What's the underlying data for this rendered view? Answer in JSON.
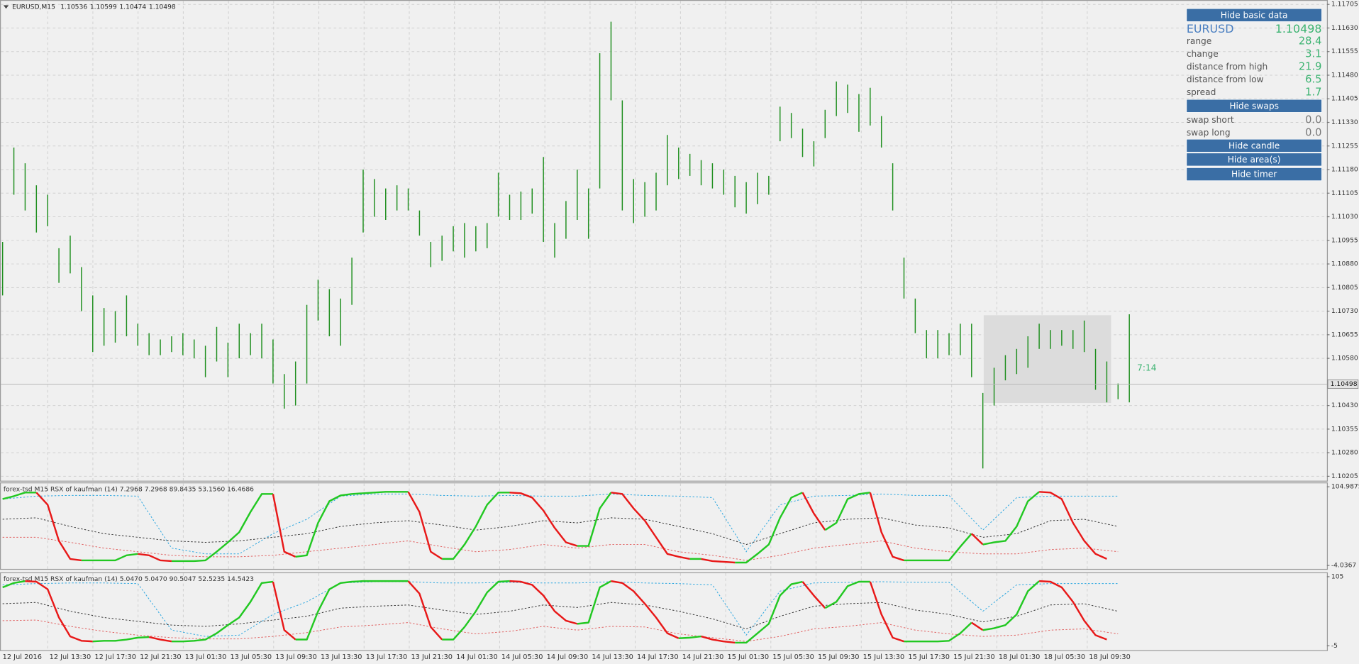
{
  "header": {
    "symbol": "EURUSD,M15",
    "open": 1.10536,
    "high": 1.10599,
    "low": 1.10474,
    "close": 1.10498
  },
  "chart_data": [
    {
      "type": "ohlc",
      "color": "#1f8f1f",
      "high": [
        1.1095,
        1.1125,
        1.112,
        1.1113,
        1.111,
        1.1093,
        1.1097,
        1.1087,
        1.1078,
        1.1074,
        1.1073,
        1.1078,
        1.1069,
        1.1066,
        1.1064,
        1.1065,
        1.1066,
        1.1064,
        1.1062,
        1.1068,
        1.1063,
        1.1069,
        1.1066,
        1.1069,
        1.1064,
        1.1053,
        1.1057,
        1.1075,
        1.1083,
        1.108,
        1.1077,
        1.109,
        1.1118,
        1.1115,
        1.1112,
        1.1113,
        1.1112,
        1.1105,
        1.1095,
        1.1097,
        1.11,
        1.1101,
        1.11,
        1.1101,
        1.1117,
        1.111,
        1.1111,
        1.1112,
        1.1122,
        1.1101,
        1.1108,
        1.1118,
        1.1112,
        1.1155,
        1.1165,
        1.114,
        1.1115,
        1.1114,
        1.1117,
        1.1129,
        1.1125,
        1.1123,
        1.1121,
        1.112,
        1.1118,
        1.1116,
        1.1114,
        1.1117,
        1.1116,
        1.1138,
        1.1136,
        1.1131,
        1.1127,
        1.1137,
        1.1146,
        1.1145,
        1.1142,
        1.1144,
        1.1135,
        1.112,
        1.109,
        1.1077,
        1.1067,
        1.1067,
        1.1066,
        1.1069,
        1.1069,
        1.1047,
        1.1055,
        1.1059,
        1.1061,
        1.1065,
        1.1069,
        1.1067,
        1.1067,
        1.1067,
        1.107,
        1.1061,
        1.1057,
        1.105,
        1.1072
      ],
      "low": [
        1.1078,
        1.111,
        1.1105,
        1.1098,
        1.11,
        1.1082,
        1.1085,
        1.1073,
        1.106,
        1.1062,
        1.1063,
        1.1065,
        1.1062,
        1.1059,
        1.1059,
        1.106,
        1.1059,
        1.1058,
        1.1052,
        1.1057,
        1.1052,
        1.1058,
        1.1059,
        1.1058,
        1.105,
        1.1042,
        1.1043,
        1.105,
        1.107,
        1.1065,
        1.1062,
        1.1075,
        1.1098,
        1.1103,
        1.1102,
        1.1105,
        1.1105,
        1.1097,
        1.1087,
        1.1089,
        1.1092,
        1.109,
        1.1092,
        1.1093,
        1.1103,
        1.1102,
        1.1102,
        1.1104,
        1.1095,
        1.109,
        1.1096,
        1.1102,
        1.1096,
        1.1112,
        1.114,
        1.1105,
        1.1101,
        1.1103,
        1.1105,
        1.1113,
        1.1115,
        1.1116,
        1.1113,
        1.1112,
        1.111,
        1.1106,
        1.1104,
        1.1107,
        1.111,
        1.1127,
        1.1128,
        1.1122,
        1.1119,
        1.1128,
        1.1135,
        1.1136,
        1.113,
        1.1132,
        1.1125,
        1.1105,
        1.1077,
        1.1066,
        1.1058,
        1.1058,
        1.1059,
        1.1059,
        1.1052,
        1.1023,
        1.1043,
        1.1051,
        1.1053,
        1.1055,
        1.1061,
        1.1061,
        1.1062,
        1.1061,
        1.106,
        1.1048,
        1.1044,
        1.1045,
        1.1044
      ],
      "ylim": [
        1.10191,
        1.11719
      ],
      "yticks": [
        1.11705,
        {
          "value": 1.1163,
          "label": "1.11630"
        },
        1.11555,
        {
          "value": 1.1148,
          "label": "1.11480"
        },
        1.11405,
        {
          "value": 1.1133,
          "label": "1.11330"
        },
        1.11255,
        {
          "value": 1.1118,
          "label": "1.11180"
        },
        1.11105,
        {
          "value": 1.1103,
          "label": "1.11030"
        },
        1.10955,
        {
          "value": 1.1088,
          "label": "1.10880"
        },
        1.10805,
        {
          "value": 1.1073,
          "label": "1.10730"
        },
        1.10655,
        {
          "value": 1.1058,
          "label": "1.10580"
        },
        {
          "value": 1.1043,
          "label": "1.10430"
        },
        1.10355,
        {
          "value": 1.1028,
          "label": "1.10280"
        },
        1.10205
      ],
      "grid": true,
      "area": {
        "high": 1.10717,
        "low": 1.10438,
        "color": "#dcdcdc"
      },
      "timer": "7:14"
    },
    {
      "type": "line",
      "title": "forex-tsd M15  RSX of kaufman (14) 7.2968 7.2968 89.8435 53.1560 16.4686",
      "up_color": "#22c822",
      "down_color": "#e81818",
      "values": [
        88,
        92,
        97,
        97,
        80,
        30,
        5,
        3,
        3,
        3,
        3,
        10,
        12,
        10,
        3,
        2,
        2,
        2,
        3,
        15,
        28,
        42,
        70,
        95,
        95,
        15,
        8,
        10,
        55,
        85,
        93,
        95,
        96,
        97,
        98,
        98,
        98,
        70,
        15,
        5,
        5,
        25,
        50,
        80,
        97,
        97,
        96,
        90,
        72,
        48,
        28,
        23,
        23,
        75,
        97,
        95,
        75,
        58,
        35,
        12,
        8,
        5,
        5,
        2,
        1,
        0,
        0,
        12,
        25,
        62,
        90,
        97,
        68,
        45,
        55,
        88,
        95,
        97,
        42,
        8,
        3,
        3,
        3,
        3,
        3,
        22,
        40,
        25,
        28,
        30,
        50,
        85,
        98,
        97,
        88,
        55,
        30,
        12,
        5
      ],
      "levels": [
        {
          "color": "#2aa6e0",
          "values": [
            88,
            92,
            93,
            93,
            92,
            20,
            12,
            12,
            40,
            60,
            92,
            95,
            95,
            93,
            92,
            93,
            92,
            92,
            95,
            93,
            92,
            90,
            15,
            80,
            92,
            93,
            95,
            93,
            93,
            45,
            90,
            92,
            92,
            92
          ]
        },
        {
          "color": "#333333",
          "values": [
            60,
            62,
            50,
            40,
            35,
            30,
            28,
            30,
            35,
            40,
            50,
            55,
            58,
            52,
            45,
            50,
            58,
            55,
            62,
            60,
            50,
            40,
            25,
            40,
            55,
            60,
            62,
            52,
            48,
            35,
            40,
            58,
            60,
            50
          ]
        },
        {
          "color": "#e06060",
          "values": [
            35,
            35,
            28,
            20,
            15,
            10,
            8,
            8,
            10,
            15,
            20,
            25,
            30,
            22,
            15,
            18,
            25,
            20,
            25,
            25,
            15,
            10,
            3,
            10,
            20,
            25,
            30,
            20,
            15,
            12,
            12,
            18,
            20,
            15
          ]
        }
      ],
      "ylim": [
        -8.8,
        111
      ],
      "yticks": [
        -4.0367,
        104.9875
      ]
    },
    {
      "type": "line",
      "title": "forex-tsd M15  RSX of kaufman (14) 5.0470 5.0470 90.5047 52.5235 14.5423",
      "up_color": "#22c822",
      "down_color": "#e81818",
      "values": [
        88,
        95,
        98,
        97,
        85,
        40,
        10,
        3,
        2,
        3,
        3,
        5,
        8,
        9,
        5,
        2,
        2,
        3,
        5,
        15,
        28,
        40,
        65,
        95,
        97,
        20,
        5,
        5,
        50,
        85,
        95,
        97,
        98,
        98,
        98,
        98,
        98,
        78,
        25,
        5,
        5,
        25,
        50,
        80,
        97,
        98,
        97,
        92,
        75,
        50,
        35,
        30,
        32,
        88,
        98,
        95,
        82,
        62,
        40,
        15,
        7,
        8,
        10,
        5,
        2,
        0,
        0,
        15,
        30,
        75,
        93,
        97,
        75,
        55,
        65,
        90,
        97,
        97,
        45,
        8,
        2,
        2,
        2,
        2,
        3,
        15,
        32,
        20,
        23,
        28,
        45,
        82,
        98,
        97,
        88,
        65,
        35,
        12,
        5
      ],
      "levels": [
        {
          "color": "#2aa6e0",
          "values": [
            92,
            94,
            95,
            95,
            94,
            20,
            10,
            12,
            45,
            65,
            95,
            97,
            97,
            95,
            95,
            96,
            95,
            95,
            97,
            95,
            94,
            92,
            12,
            82,
            95,
            96,
            97,
            96,
            96,
            50,
            92,
            94,
            94,
            94
          ]
        },
        {
          "color": "#333333",
          "values": [
            62,
            64,
            50,
            40,
            34,
            28,
            26,
            30,
            36,
            42,
            55,
            58,
            60,
            52,
            45,
            50,
            60,
            56,
            64,
            60,
            50,
            38,
            22,
            42,
            58,
            62,
            64,
            52,
            45,
            33,
            42,
            60,
            62,
            50
          ]
        },
        {
          "color": "#e06060",
          "values": [
            35,
            36,
            26,
            18,
            12,
            8,
            6,
            6,
            10,
            16,
            25,
            28,
            32,
            22,
            14,
            18,
            26,
            20,
            26,
            25,
            14,
            8,
            2,
            10,
            22,
            26,
            32,
            20,
            14,
            10,
            12,
            20,
            22,
            14
          ]
        }
      ],
      "ylim": [
        -11.9,
        111.9
      ],
      "yticks": [
        -5,
        105
      ]
    }
  ],
  "time_axis": [
    "12 Jul 2016",
    "12 Jul 13:30",
    "12 Jul 17:30",
    "12 Jul 21:30",
    "13 Jul 01:30",
    "13 Jul 05:30",
    "13 Jul 09:30",
    "13 Jul 13:30",
    "13 Jul 17:30",
    "13 Jul 21:30",
    "14 Jul 01:30",
    "14 Jul 05:30",
    "14 Jul 09:30",
    "14 Jul 13:30",
    "14 Jul 17:30",
    "14 Jul 21:30",
    "15 Jul 01:30",
    "15 Jul 05:30",
    "15 Jul 09:30",
    "15 Jul 13:30",
    "15 Jul 17:30",
    "15 Jul 21:30",
    "18 Jul 01:30",
    "18 Jul 05:30",
    "18 Jul 09:30"
  ],
  "info_panel": {
    "buttons": [
      "Hide basic data",
      "Hide swaps",
      "Hide candle",
      "Hide area(s)",
      "Hide timer"
    ],
    "symbol": "EURUSD",
    "basic": [
      {
        "label": "range",
        "value": "28.4"
      },
      {
        "label": "change",
        "value": "3.1"
      },
      {
        "label": "distance from high",
        "value": "21.9"
      },
      {
        "label": "distance from low",
        "value": "6.5"
      },
      {
        "label": "spread",
        "value": "1.7"
      }
    ],
    "swaps": [
      {
        "label": "swap short",
        "value": "0.0"
      },
      {
        "label": "swap long",
        "value": "0.0"
      }
    ]
  }
}
